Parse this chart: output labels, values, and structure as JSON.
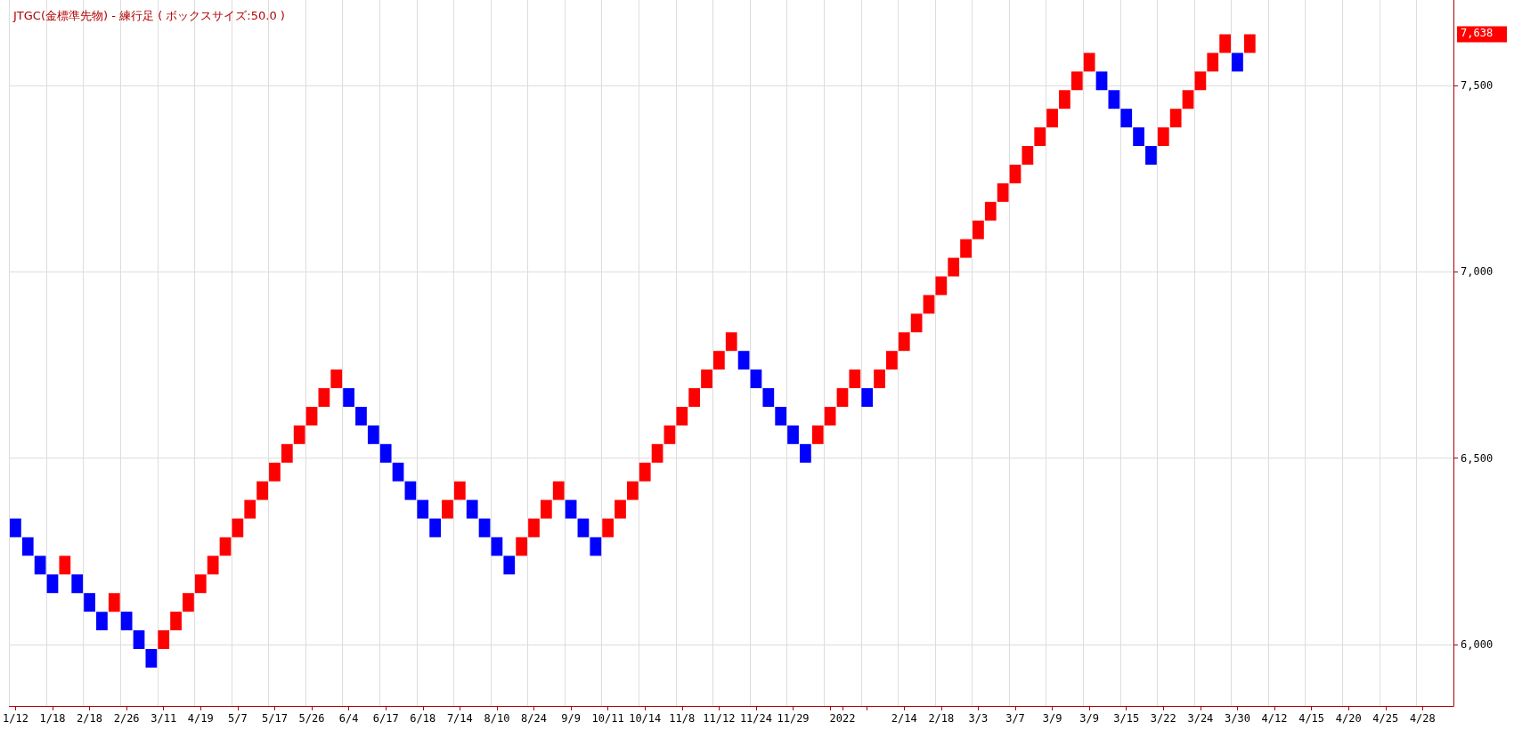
{
  "chart_data": {
    "type": "bar",
    "title": "JTGC(金標準先物) - 練行足 ( ボックスサイズ:50.0 )",
    "categories": [
      "1/12",
      null,
      null,
      "1/18",
      null,
      null,
      "2/18",
      null,
      null,
      "2/26",
      null,
      null,
      "3/11",
      null,
      null,
      "4/19",
      null,
      null,
      "5/7",
      null,
      null,
      "5/17",
      null,
      null,
      "5/26",
      null,
      null,
      "6/4",
      null,
      null,
      "6/17",
      null,
      null,
      "6/18",
      null,
      null,
      "7/14",
      null,
      null,
      "8/10",
      null,
      null,
      "8/24",
      null,
      null,
      "9/9",
      null,
      null,
      "10/11",
      null,
      null,
      "10/14",
      null,
      null,
      "11/8",
      null,
      null,
      "11/12",
      null,
      null,
      "11/24",
      null,
      null,
      "11/29",
      null,
      null,
      null,
      "2022",
      null,
      null,
      null,
      null,
      "2/14",
      null,
      null,
      "2/18",
      null,
      null,
      "3/3",
      null,
      null,
      "3/7",
      null,
      null,
      "3/9",
      null,
      null,
      "3/9",
      null,
      null,
      "3/15",
      null,
      null,
      "3/22",
      null,
      null,
      "3/24",
      null,
      null,
      "3/30",
      null,
      null,
      "4/12",
      null,
      null,
      "4/15",
      null,
      null,
      "4/20",
      null,
      null,
      "4/25",
      null,
      null,
      "4/28",
      null,
      null
    ],
    "base": [
      6288,
      6238,
      6188,
      6138,
      6188,
      6138,
      6088,
      6038,
      6088,
      6038,
      5988,
      5938,
      5988,
      6038,
      6088,
      6138,
      6188,
      6238,
      6288,
      6338,
      6388,
      6438,
      6488,
      6538,
      6588,
      6638,
      6688,
      6638,
      6588,
      6538,
      6488,
      6438,
      6388,
      6338,
      6288,
      6338,
      6388,
      6338,
      6288,
      6238,
      6188,
      6238,
      6288,
      6338,
      6388,
      6338,
      6288,
      6238,
      6288,
      6338,
      6388,
      6438,
      6488,
      6538,
      6588,
      6638,
      6688,
      6738,
      6788,
      6738,
      6688,
      6638,
      6588,
      6538,
      6488,
      6538,
      6588,
      6638,
      6688,
      6638,
      6688,
      6738,
      6788,
      6838,
      6888,
      6938,
      6988,
      7038,
      7088,
      7138,
      7188,
      7238,
      7288,
      7338,
      7388,
      7438,
      7488,
      7538,
      7488,
      7438,
      7388,
      7338,
      7288,
      7338,
      7388,
      7438,
      7488,
      7538,
      7588,
      7538,
      7588,
      null,
      null,
      null,
      null,
      null,
      null,
      null,
      null,
      null,
      null,
      null,
      null,
      null,
      null,
      null,
      null
    ],
    "values": [
      50,
      50,
      50,
      50,
      50,
      50,
      50,
      50,
      50,
      50,
      50,
      50,
      50,
      50,
      50,
      50,
      50,
      50,
      50,
      50,
      50,
      50,
      50,
      50,
      50,
      50,
      50,
      50,
      50,
      50,
      50,
      50,
      50,
      50,
      50,
      50,
      50,
      50,
      50,
      50,
      50,
      50,
      50,
      50,
      50,
      50,
      50,
      50,
      50,
      50,
      50,
      50,
      50,
      50,
      50,
      50,
      50,
      50,
      50,
      50,
      50,
      50,
      50,
      50,
      50,
      50,
      50,
      50,
      50,
      50,
      50,
      50,
      50,
      50,
      50,
      50,
      50,
      50,
      50,
      50,
      50,
      50,
      50,
      50,
      50,
      50,
      50,
      50,
      50,
      50,
      50,
      50,
      50,
      50,
      50,
      50,
      50,
      50,
      50,
      50,
      50,
      null,
      null,
      null,
      null,
      null,
      null,
      null,
      null,
      null,
      null,
      null,
      null,
      null,
      null,
      null,
      null
    ],
    "colors": [
      "#0000ff",
      "#0000ff",
      "#0000ff",
      "#0000ff",
      "#ff0000",
      "#0000ff",
      "#0000ff",
      "#0000ff",
      "#ff0000",
      "#0000ff",
      "#0000ff",
      "#0000ff",
      "#ff0000",
      "#ff0000",
      "#ff0000",
      "#ff0000",
      "#ff0000",
      "#ff0000",
      "#ff0000",
      "#ff0000",
      "#ff0000",
      "#ff0000",
      "#ff0000",
      "#ff0000",
      "#ff0000",
      "#ff0000",
      "#ff0000",
      "#0000ff",
      "#0000ff",
      "#0000ff",
      "#0000ff",
      "#0000ff",
      "#0000ff",
      "#0000ff",
      "#0000ff",
      "#ff0000",
      "#ff0000",
      "#0000ff",
      "#0000ff",
      "#0000ff",
      "#0000ff",
      "#ff0000",
      "#ff0000",
      "#ff0000",
      "#ff0000",
      "#0000ff",
      "#0000ff",
      "#0000ff",
      "#ff0000",
      "#ff0000",
      "#ff0000",
      "#ff0000",
      "#ff0000",
      "#ff0000",
      "#ff0000",
      "#ff0000",
      "#ff0000",
      "#ff0000",
      "#ff0000",
      "#0000ff",
      "#0000ff",
      "#0000ff",
      "#0000ff",
      "#0000ff",
      "#0000ff",
      "#ff0000",
      "#ff0000",
      "#ff0000",
      "#ff0000",
      "#0000ff",
      "#ff0000",
      "#ff0000",
      "#ff0000",
      "#ff0000",
      "#ff0000",
      "#ff0000",
      "#ff0000",
      "#ff0000",
      "#ff0000",
      "#ff0000",
      "#ff0000",
      "#ff0000",
      "#ff0000",
      "#ff0000",
      "#ff0000",
      "#ff0000",
      "#ff0000",
      "#ff0000",
      "#0000ff",
      "#0000ff",
      "#0000ff",
      "#0000ff",
      "#0000ff",
      "#ff0000",
      "#ff0000",
      "#ff0000",
      "#ff0000",
      "#ff0000",
      "#ff0000",
      "#0000ff",
      "#ff0000",
      null,
      null,
      null,
      null,
      null,
      null,
      null,
      null,
      null,
      null,
      null,
      null,
      null,
      null,
      null,
      null
    ],
    "ylim": [
      5835,
      7730
    ],
    "yticks": [
      {
        "value": 6000,
        "label": "6,000"
      },
      {
        "value": 6500,
        "label": "6,500"
      },
      {
        "value": 7000,
        "label": "7,000"
      },
      {
        "value": 7500,
        "label": "7,500"
      }
    ],
    "annotations": [
      "7,638"
    ],
    "grid": true
  }
}
